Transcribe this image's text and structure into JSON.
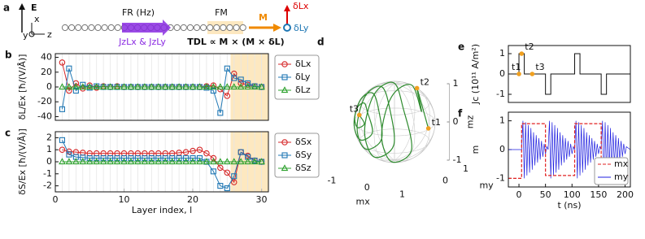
{
  "schematic": {
    "label": "a",
    "field": "E",
    "axes": [
      "x",
      "y",
      "z"
    ],
    "fr": "FR (Hz)",
    "fm": "FM",
    "m": "M",
    "dlx": "δLx",
    "dly": "δLy",
    "currents": "JzLx & JzLy",
    "torque": "TDL ∝ M × (M × δL)"
  },
  "chart_data": [
    {
      "type": "line",
      "panel": "b",
      "ylabel": "δL/Ex [ħ/(V/Å)]",
      "xlim": [
        0,
        31
      ],
      "ylim": [
        -45,
        45
      ],
      "yticks": [
        -40,
        -20,
        0,
        20,
        40
      ],
      "grid": "x",
      "legend": "outside right",
      "shade": {
        "xspan": [
          25.5,
          31
        ],
        "color": "#fde8c0"
      },
      "x": [
        1,
        2,
        3,
        4,
        5,
        6,
        7,
        8,
        9,
        10,
        11,
        12,
        13,
        14,
        15,
        16,
        17,
        18,
        19,
        20,
        21,
        22,
        23,
        24,
        25,
        26,
        27,
        28,
        29,
        30
      ],
      "series": [
        {
          "name": "δLx",
          "color": "#d62728",
          "marker": "circle",
          "values": [
            33,
            -5,
            5,
            -2,
            2,
            -1,
            1,
            0,
            1,
            0,
            0,
            0,
            0,
            0,
            0,
            0,
            0,
            0,
            0,
            0,
            0,
            1,
            2,
            -3,
            -12,
            18,
            5,
            3,
            1,
            0
          ]
        },
        {
          "name": "δLy",
          "color": "#1f77b4",
          "marker": "square",
          "values": [
            -30,
            25,
            -5,
            3,
            -1,
            1,
            0,
            0,
            0,
            0,
            0,
            0,
            0,
            0,
            0,
            0,
            0,
            0,
            0,
            0,
            0,
            -1,
            -5,
            -35,
            25,
            12,
            10,
            5,
            1,
            0
          ]
        },
        {
          "name": "δLz",
          "color": "#2ca02c",
          "marker": "triangle",
          "values": [
            0,
            0,
            0,
            0,
            0,
            0,
            0,
            0,
            0,
            0,
            0,
            0,
            0,
            0,
            0,
            0,
            0,
            0,
            0,
            0,
            0,
            0,
            0,
            0,
            0,
            0,
            0,
            0,
            0,
            0
          ]
        }
      ]
    },
    {
      "type": "line",
      "panel": "c",
      "ylabel": "δS/Ex [ħ/(V/Å)]",
      "xlabel": "Layer index, l",
      "xlim": [
        0,
        31
      ],
      "ylim": [
        -2.5,
        2.5
      ],
      "xticks": [
        0,
        10,
        20,
        30
      ],
      "yticks": [
        -2,
        -1,
        0,
        1,
        2
      ],
      "grid": "x",
      "legend": "outside right",
      "shade": {
        "xspan": [
          25.5,
          31
        ],
        "color": "#fde8c0"
      },
      "x": [
        1,
        2,
        3,
        4,
        5,
        6,
        7,
        8,
        9,
        10,
        11,
        12,
        13,
        14,
        15,
        16,
        17,
        18,
        19,
        20,
        21,
        22,
        23,
        24,
        25,
        26,
        27,
        28,
        29,
        30
      ],
      "series": [
        {
          "name": "δSx",
          "color": "#d62728",
          "marker": "circle",
          "values": [
            1.0,
            0.85,
            0.8,
            0.75,
            0.7,
            0.7,
            0.7,
            0.7,
            0.7,
            0.7,
            0.7,
            0.7,
            0.7,
            0.7,
            0.7,
            0.7,
            0.7,
            0.75,
            0.8,
            0.9,
            1.0,
            0.7,
            0.3,
            -0.5,
            -0.9,
            -1.7,
            0.8,
            0.5,
            0.1,
            0.0
          ]
        },
        {
          "name": "δSy",
          "color": "#1f77b4",
          "marker": "square",
          "values": [
            1.8,
            0.6,
            0.4,
            0.35,
            0.3,
            0.3,
            0.3,
            0.3,
            0.3,
            0.3,
            0.3,
            0.3,
            0.3,
            0.3,
            0.3,
            0.3,
            0.3,
            0.3,
            0.3,
            0.3,
            0.3,
            0,
            -0.8,
            -2.0,
            -2.2,
            -1.2,
            0.8,
            0.4,
            0.1,
            0
          ]
        },
        {
          "name": "δSz",
          "color": "#2ca02c",
          "marker": "triangle",
          "values": [
            0,
            0,
            0,
            0,
            0,
            0,
            0,
            0,
            0,
            0,
            0,
            0,
            0,
            0,
            0,
            0,
            0,
            0,
            0,
            0,
            0,
            0,
            0,
            0,
            0,
            0,
            0,
            0,
            0,
            0
          ]
        }
      ]
    },
    {
      "type": "line3d",
      "panel": "d",
      "xlabel": "mx",
      "ylabel": "my",
      "zlabel": "mz",
      "xlim": [
        -1,
        1
      ],
      "ylim": [
        -1,
        1
      ],
      "zlim": [
        -1,
        1
      ],
      "xticks": [
        -1,
        0,
        1
      ],
      "yticks": [
        0,
        1
      ],
      "zticks": [
        -1,
        0,
        1
      ],
      "series": [
        {
          "color": "#2e8b2e",
          "mx": [
            0.5,
            0.35,
            0.2,
            0.2,
            0.2,
            0.2,
            0.2,
            0.2,
            -0.3,
            -0.3,
            -0.3,
            -0.3,
            -0.3,
            -0.3,
            -0.6,
            -0.6,
            -0.6,
            -0.6,
            -0.6,
            -0.6,
            -0.8,
            -0.8,
            -0.8,
            -0.8,
            -0.8,
            -0.8,
            -0.95,
            -0.95,
            -0.95,
            -0.95,
            -0.95,
            -0.95,
            -1
          ],
          "my": [
            0.8,
            0.5,
            0.98,
            0.49,
            -0.49,
            -0.98,
            -0.49,
            0.49,
            0.95,
            0.48,
            -0.48,
            -0.95,
            -0.48,
            0.48,
            0.8,
            0.4,
            -0.4,
            -0.8,
            -0.4,
            0.4,
            0.6,
            0.3,
            -0.3,
            -0.6,
            -0.3,
            0.3,
            0.31,
            0.16,
            -0.16,
            -0.31,
            -0.16,
            0.16,
            0
          ],
          "mz": [
            -0.33,
            0.79,
            0,
            0.85,
            0.85,
            0,
            -0.85,
            -0.85,
            0,
            0.82,
            0.82,
            0,
            -0.82,
            -0.82,
            0,
            0.69,
            0.69,
            0,
            -0.69,
            -0.69,
            0,
            0.52,
            0.52,
            0,
            -0.52,
            -0.52,
            0,
            0.27,
            0.27,
            0,
            -0.27,
            -0.27,
            0
          ]
        }
      ],
      "points": [
        {
          "label": "t1",
          "mx": 0.5,
          "my": 0.8,
          "mz": -0.33
        },
        {
          "label": "t2",
          "mx": 0.35,
          "my": 0.5,
          "mz": 0.79
        },
        {
          "label": "t3",
          "mx": -1,
          "my": 0,
          "mz": 0
        }
      ],
      "point_color": "#f0a020"
    },
    {
      "type": "step",
      "panel": "e",
      "ylabel": "Jc (10¹¹ A/m²)",
      "xlim": [
        -20,
        210
      ],
      "ylim": [
        -1.4,
        1.4
      ],
      "yticks": [
        -1,
        0,
        1
      ],
      "color": "#111111",
      "x": [
        -20,
        0,
        0,
        10,
        10,
        50,
        50,
        60,
        60,
        105,
        105,
        115,
        115,
        155,
        155,
        165,
        165,
        210
      ],
      "values": [
        0,
        0,
        1,
        1,
        0,
        0,
        -1,
        -1,
        0,
        0,
        1,
        1,
        0,
        0,
        -1,
        -1,
        0,
        0
      ],
      "points": [
        {
          "label": "t1",
          "x": 0,
          "y": 0
        },
        {
          "label": "t2",
          "x": 5,
          "y": 1
        },
        {
          "label": "t3",
          "x": 25,
          "y": 0
        }
      ],
      "point_color": "#f0a020"
    },
    {
      "type": "multiline",
      "panel": "f",
      "ylabel": "m",
      "xlabel": "t (ns)",
      "xlim": [
        -20,
        210
      ],
      "ylim": [
        -1.3,
        1.3
      ],
      "xticks": [
        0,
        50,
        100,
        150,
        200
      ],
      "yticks": [
        -1,
        0,
        1
      ],
      "legend": "lower right",
      "series": [
        {
          "name": "my",
          "color": "#1f1fe0",
          "dash": false,
          "x": [
            -20,
            0,
            5,
            7.5,
            10,
            12.5,
            15,
            17.5,
            20,
            22.5,
            25,
            27.5,
            30,
            32.5,
            35,
            37.5,
            40,
            42.5,
            45,
            47.5,
            50,
            52.5,
            55,
            57.5,
            60,
            62.5,
            65,
            67.5,
            70,
            72.5,
            75,
            77.5,
            80,
            82.5,
            85,
            87.5,
            90,
            92.5,
            95,
            97.5,
            100,
            102.5,
            105,
            107.5,
            110,
            112.5,
            115,
            117.5,
            120,
            122.5,
            125,
            127.5,
            130,
            132.5,
            135,
            137.5,
            140,
            142.5,
            145,
            147.5,
            150,
            152.5,
            155,
            157.5,
            160,
            162.5,
            165,
            167.5,
            170,
            172.5,
            175,
            177.5,
            180,
            182.5,
            185,
            187.5,
            190,
            192.5,
            195,
            197.5,
            200,
            202.5,
            210
          ],
          "values": [
            0,
            0,
            0,
            1,
            -1,
            0.95,
            -0.9,
            0.85,
            -0.8,
            0.75,
            -0.7,
            0.6,
            -0.55,
            0.5,
            -0.45,
            0.4,
            -0.35,
            0.3,
            -0.25,
            0.2,
            -0.15,
            0.1,
            0,
            1,
            -1,
            0.95,
            -0.9,
            0.85,
            -0.8,
            0.75,
            -0.7,
            0.6,
            -0.55,
            0.5,
            -0.45,
            0.4,
            -0.35,
            0.3,
            -0.25,
            0.2,
            -0.15,
            0.1,
            0,
            1,
            -1,
            0.95,
            -0.9,
            0.85,
            -0.8,
            0.75,
            -0.7,
            0.6,
            -0.55,
            0.5,
            -0.45,
            0.4,
            -0.35,
            0.3,
            -0.25,
            0.2,
            -0.15,
            0.1,
            0,
            1,
            -1,
            0.95,
            -0.9,
            0.85,
            -0.8,
            0.75,
            -0.7,
            0.6,
            -0.55,
            0.5,
            -0.45,
            0.4,
            -0.35,
            0.3,
            -0.25,
            0.2,
            -0.15,
            0.1,
            0
          ]
        },
        {
          "name": "mx",
          "color": "#e02020",
          "dash": true,
          "x": [
            -20,
            5,
            5,
            50,
            50,
            105,
            105,
            155,
            155,
            210
          ],
          "values": [
            -1,
            -1,
            0.9,
            0.9,
            -0.9,
            -0.9,
            0.9,
            0.9,
            -0.9,
            -0.9
          ]
        }
      ]
    }
  ]
}
